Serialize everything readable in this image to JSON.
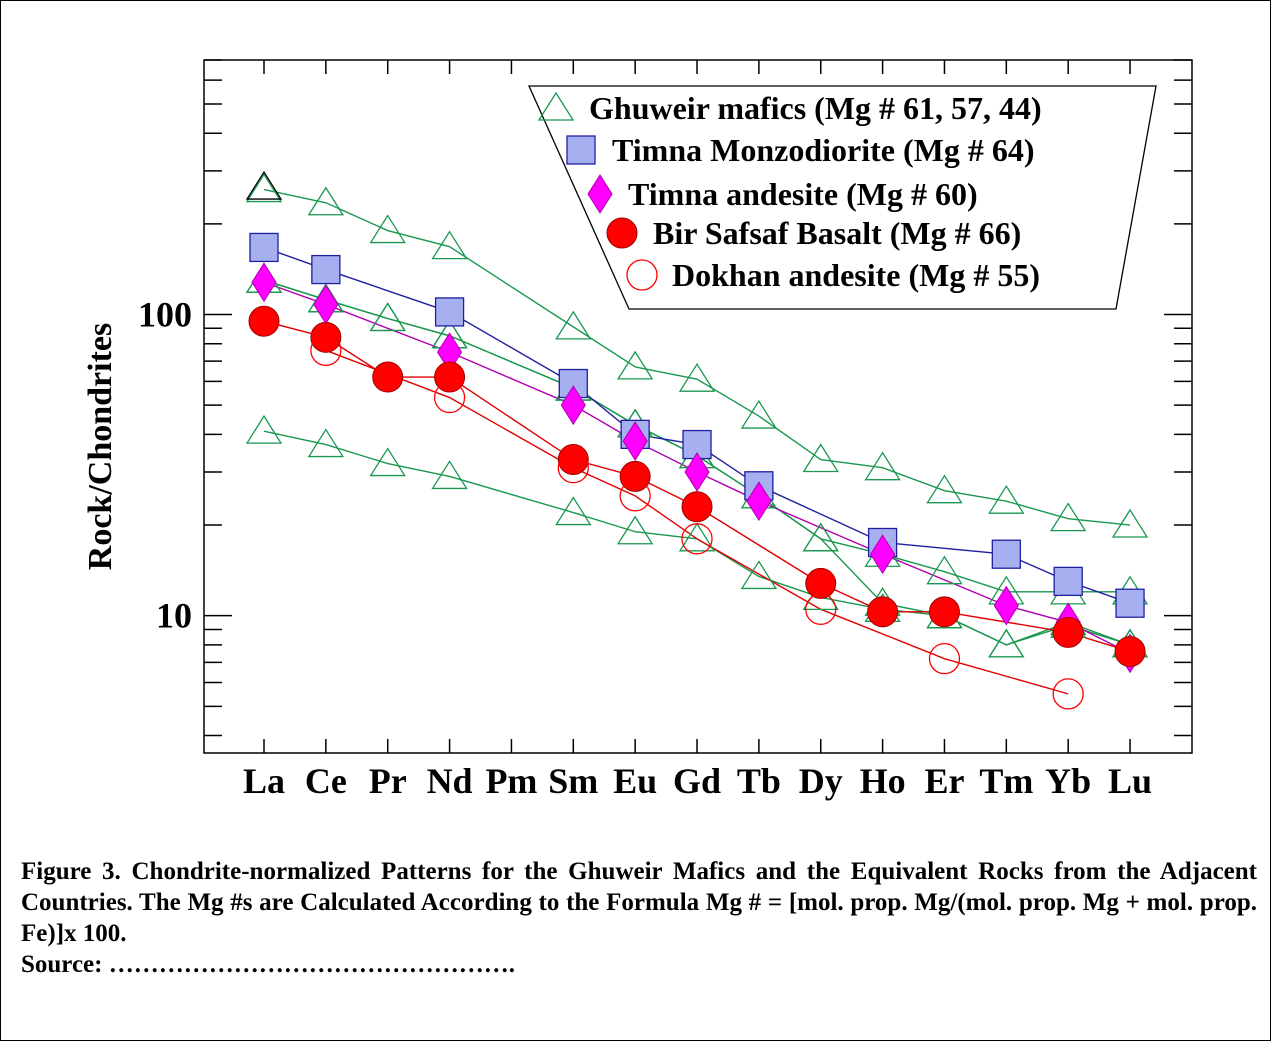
{
  "chart_data": {
    "type": "line",
    "yscale": "log",
    "ylim": [
      3.5,
      700
    ],
    "ylabel": "Rock/Chondrites",
    "yticklabels": [
      "10",
      "100"
    ],
    "grid": false,
    "legend_position": "top-right",
    "categories": [
      "La",
      "Ce",
      "Pr",
      "Nd",
      "Pm",
      "Sm",
      "Eu",
      "Gd",
      "Tb",
      "Dy",
      "Ho",
      "Er",
      "Tm",
      "Yb",
      "Lu"
    ],
    "series": [
      {
        "name": "Ghuweir mafics (Mg # 61, 57, 44)",
        "marker": "triangle-open",
        "color": "#1a9850",
        "lines": [
          [
            260,
            235,
            190,
            168,
            null,
            91,
            67,
            61,
            46,
            33,
            31,
            26,
            24,
            21,
            20
          ],
          [
            130,
            112,
            97,
            85,
            null,
            57,
            43,
            34,
            25,
            18,
            16,
            14,
            12,
            12,
            12
          ],
          [
            130,
            112,
            97,
            85,
            null,
            57,
            43,
            34,
            25,
            18,
            11,
            10,
            8,
            9.5,
            8
          ],
          [
            41,
            37,
            32,
            29,
            null,
            22,
            19,
            18,
            13.5,
            11.5,
            10.5,
            10,
            8,
            9.3,
            8
          ]
        ],
        "special_marker": {
          "category": "La",
          "value": 265,
          "color": "#000000"
        }
      },
      {
        "name": "Timna Monzodiorite (Mg # 64)",
        "marker": "square",
        "color": "#a6b0f0",
        "stroke": "#1f1fa0",
        "lines": [
          [
            167,
            141,
            null,
            102,
            null,
            59,
            40,
            37,
            27,
            null,
            17.5,
            null,
            16,
            13,
            11
          ]
        ]
      },
      {
        "name": "Timna andesite (Mg # 60)",
        "marker": "diamond",
        "color": "#ff00ff",
        "stroke": "#b000b0",
        "lines": [
          [
            128,
            108,
            null,
            75,
            null,
            50,
            38,
            30,
            24,
            null,
            16,
            null,
            10.8,
            9.5,
            7.5
          ]
        ]
      },
      {
        "name": "Bir Safsaf Basalt (Mg # 66)",
        "marker": "circle",
        "color": "#ff0000",
        "stroke": "#a00000",
        "lines": [
          [
            95,
            84,
            62,
            62,
            null,
            33,
            29,
            23,
            null,
            12.8,
            10.3,
            10.3,
            null,
            8.8,
            7.6
          ]
        ]
      },
      {
        "name": "Dokhan andesite (Mg # 55)",
        "marker": "circle-open",
        "color": "#ff0000",
        "lines": [
          [
            null,
            76,
            null,
            53,
            null,
            31,
            25,
            18,
            null,
            10.5,
            null,
            7.2,
            null,
            5.5,
            null
          ]
        ]
      }
    ]
  },
  "caption": {
    "text": "Figure 3. Chondrite-normalized Patterns for the Ghuweir Mafics and the Equivalent Rocks from the Adjacent Countries.  The Mg #s are   Calculated According to the Formula Mg # = [mol. prop. Mg/(mol.  prop. Mg + mol. prop. Fe)]x 100.",
    "source": "Source: …………………………………………."
  }
}
